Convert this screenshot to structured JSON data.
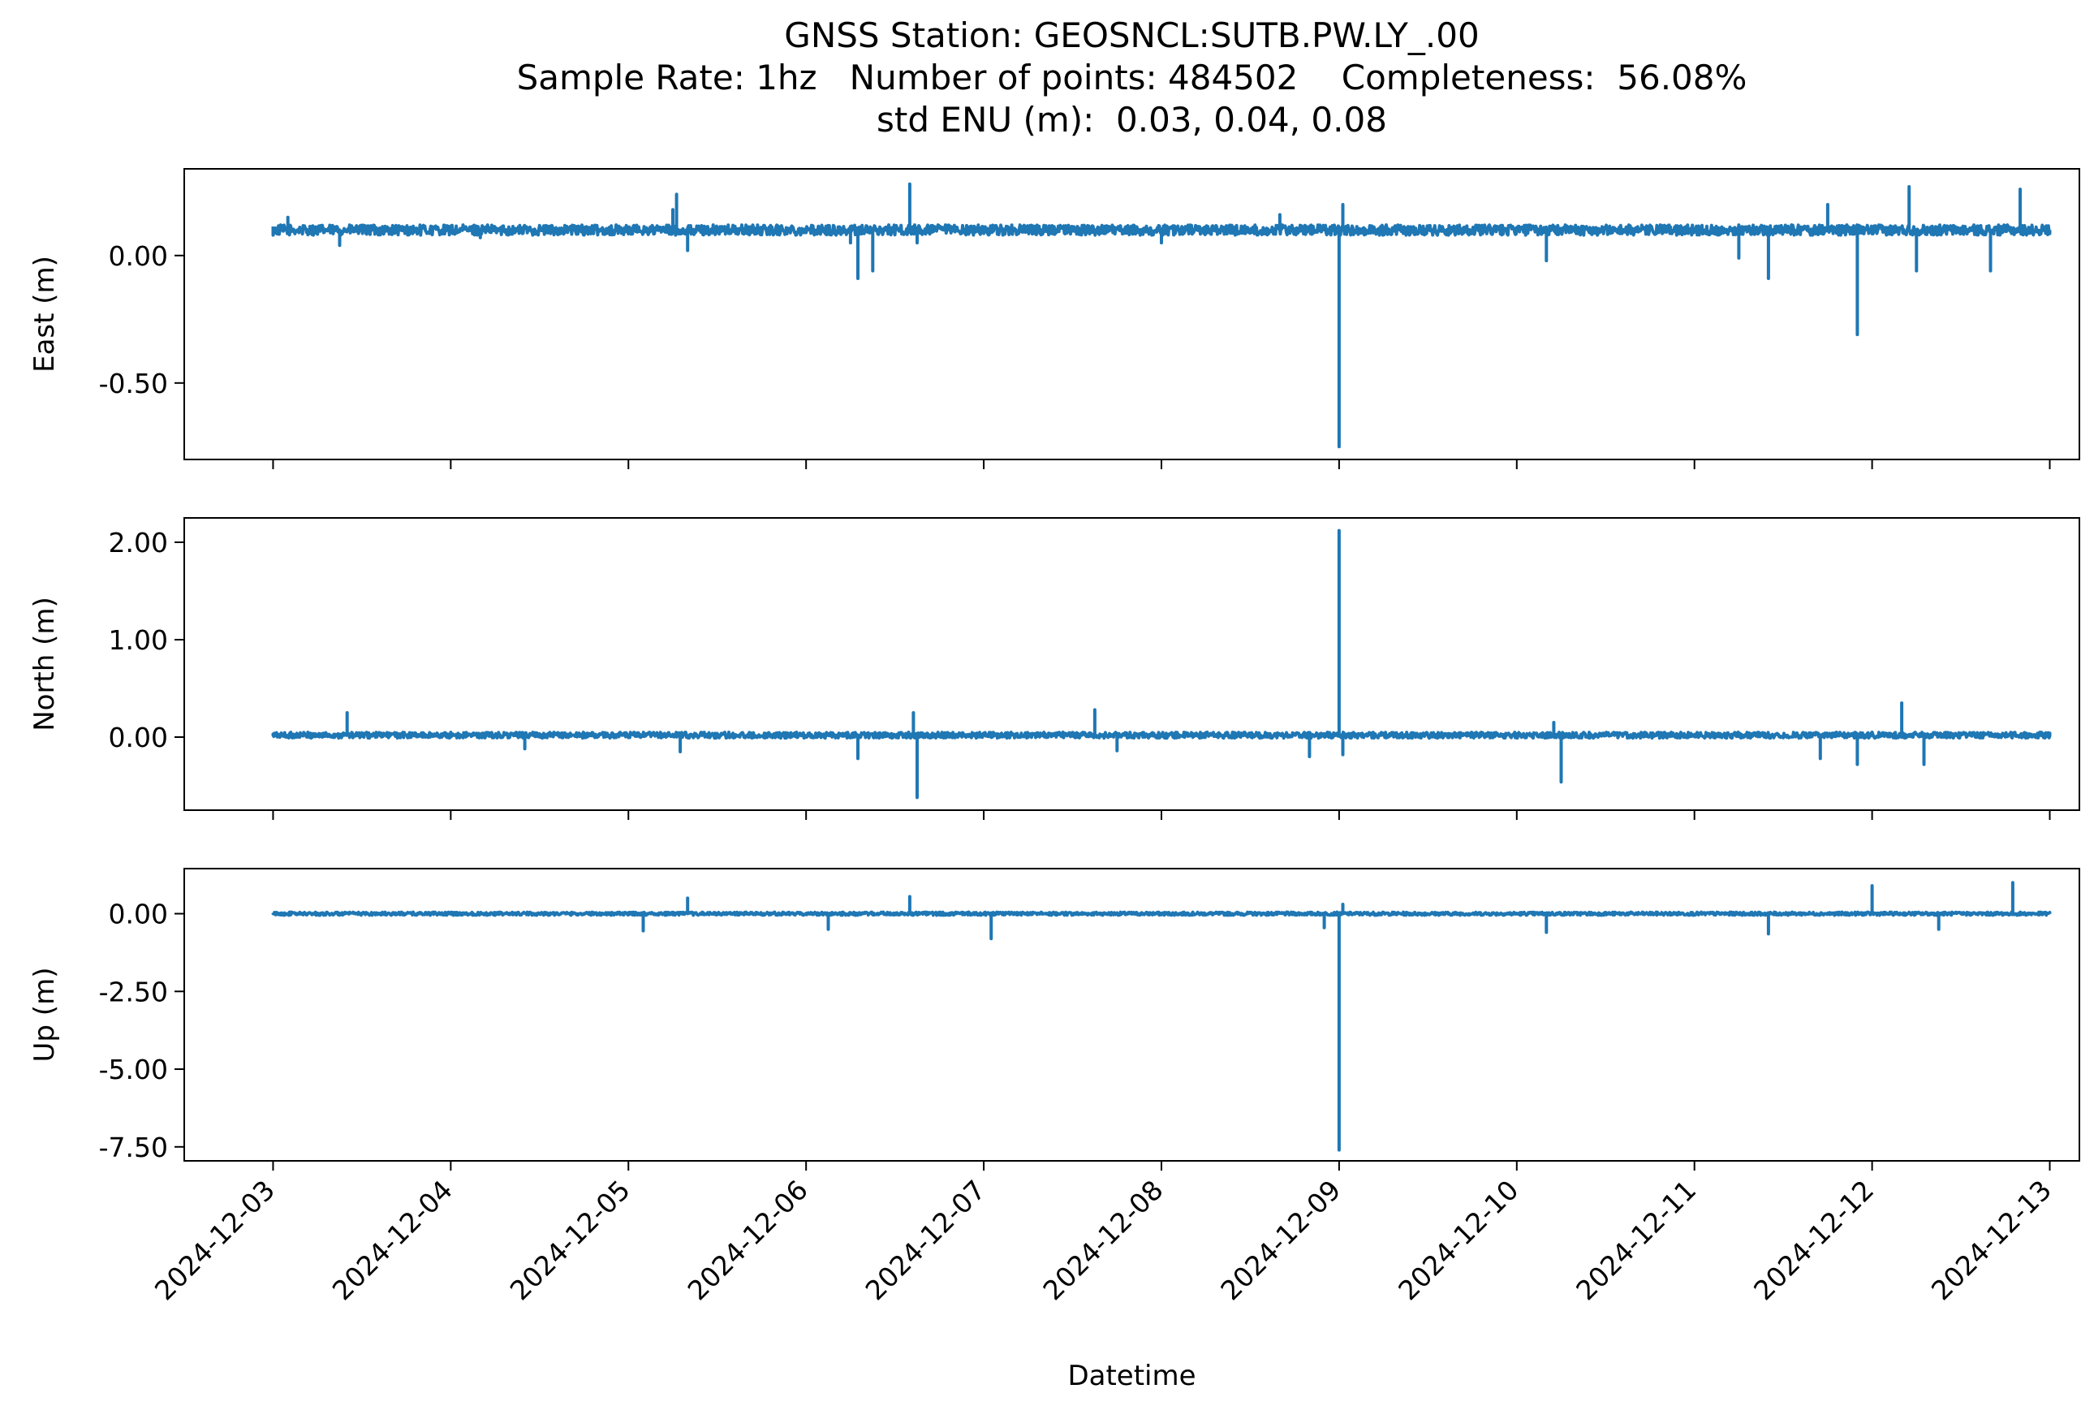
{
  "title_lines": [
    "GNSS Station: GEOSNCL:SUTB.PW.LY_.00",
    "Sample Rate: 1hz   Number of points: 484502    Completeness:  56.08%",
    "std ENU (m):  0.03, 0.04, 0.08"
  ],
  "chart_data": [
    {
      "type": "line",
      "name": "east",
      "ylabel": "East (m)",
      "xlabel": "",
      "color": "#1f77b4",
      "xlim": [
        "2024-12-02T12:00",
        "2024-12-13T04:00"
      ],
      "ylim": [
        -0.8,
        0.34
      ],
      "yticks": [
        0.0,
        -0.5
      ],
      "ytick_labels": [
        "0.00",
        "-0.50"
      ],
      "baseline": 0.1,
      "noise": 0.02,
      "x": [
        "2024-12-03T00:00",
        "2024-12-03T02:00",
        "2024-12-03T09:00",
        "2024-12-04T04:00",
        "2024-12-05T06:00",
        "2024-12-05T06:30",
        "2024-12-05T08:00",
        "2024-12-06T06:00",
        "2024-12-06T07:00",
        "2024-12-06T09:00",
        "2024-12-06T14:00",
        "2024-12-06T15:00",
        "2024-12-08T00:00",
        "2024-12-08T16:00",
        "2024-12-09T00:00",
        "2024-12-09T00:30",
        "2024-12-10T04:00",
        "2024-12-11T06:00",
        "2024-12-11T10:00",
        "2024-12-11T18:00",
        "2024-12-11T22:00",
        "2024-12-11T23:00",
        "2024-12-12T05:00",
        "2024-12-12T06:00",
        "2024-12-12T16:00",
        "2024-12-12T20:00",
        "2024-12-13T00:00"
      ],
      "y": [
        0.08,
        0.15,
        0.04,
        0.07,
        0.18,
        0.24,
        0.02,
        0.05,
        -0.09,
        -0.06,
        0.28,
        0.05,
        0.05,
        0.16,
        -0.75,
        0.2,
        -0.02,
        -0.01,
        -0.09,
        0.2,
        -0.31,
        0.1,
        0.27,
        -0.06,
        -0.06,
        0.26,
        0.1
      ]
    },
    {
      "type": "line",
      "name": "north",
      "ylabel": "North (m)",
      "xlabel": "",
      "color": "#1f77b4",
      "xlim": [
        "2024-12-02T12:00",
        "2024-12-13T04:00"
      ],
      "ylim": [
        -0.75,
        2.25
      ],
      "yticks": [
        2.0,
        1.0,
        0.0
      ],
      "ytick_labels": [
        "2.00",
        "1.00",
        "0.00"
      ],
      "baseline": 0.02,
      "noise": 0.03,
      "x": [
        "2024-12-03T00:00",
        "2024-12-03T10:00",
        "2024-12-04T10:00",
        "2024-12-05T07:00",
        "2024-12-06T07:00",
        "2024-12-06T14:30",
        "2024-12-06T15:00",
        "2024-12-07T15:00",
        "2024-12-07T18:00",
        "2024-12-08T20:00",
        "2024-12-09T00:00",
        "2024-12-09T00:30",
        "2024-12-10T05:00",
        "2024-12-10T06:00",
        "2024-12-11T17:00",
        "2024-12-11T22:00",
        "2024-12-12T04:00",
        "2024-12-12T07:00",
        "2024-12-13T00:00"
      ],
      "y": [
        0.03,
        0.25,
        -0.12,
        -0.15,
        -0.22,
        0.25,
        -0.62,
        0.28,
        -0.14,
        -0.2,
        2.12,
        -0.18,
        0.15,
        -0.46,
        -0.22,
        -0.28,
        0.35,
        -0.28,
        0.04
      ]
    },
    {
      "type": "line",
      "name": "up",
      "ylabel": "Up (m)",
      "xlabel": "Datetime",
      "color": "#1f77b4",
      "xlim": [
        "2024-12-02T12:00",
        "2024-12-13T04:00"
      ],
      "ylim": [
        -7.95,
        1.45
      ],
      "yticks": [
        0.0,
        -2.5,
        -5.0,
        -7.5
      ],
      "ytick_labels": [
        "0.00",
        "-2.50",
        "-5.00",
        "-7.50"
      ],
      "baseline": 0.0,
      "noise": 0.05,
      "x": [
        "2024-12-03T00:00",
        "2024-12-05T02:00",
        "2024-12-05T08:00",
        "2024-12-06T03:00",
        "2024-12-06T14:00",
        "2024-12-07T01:00",
        "2024-12-08T22:00",
        "2024-12-09T00:00",
        "2024-12-09T00:30",
        "2024-12-10T04:00",
        "2024-12-11T10:00",
        "2024-12-12T00:00",
        "2024-12-12T09:00",
        "2024-12-12T19:00",
        "2024-12-13T00:00"
      ],
      "y": [
        0.0,
        -0.55,
        0.5,
        -0.5,
        0.55,
        -0.8,
        -0.45,
        -7.6,
        0.3,
        -0.6,
        -0.65,
        0.9,
        -0.5,
        1.0,
        0.0
      ]
    }
  ],
  "x_axis": {
    "label": "Datetime",
    "tick_labels": [
      "2024-12-03",
      "2024-12-04",
      "2024-12-05",
      "2024-12-06",
      "2024-12-07",
      "2024-12-08",
      "2024-12-09",
      "2024-12-10",
      "2024-12-11",
      "2024-12-12",
      "2024-12-13"
    ]
  }
}
